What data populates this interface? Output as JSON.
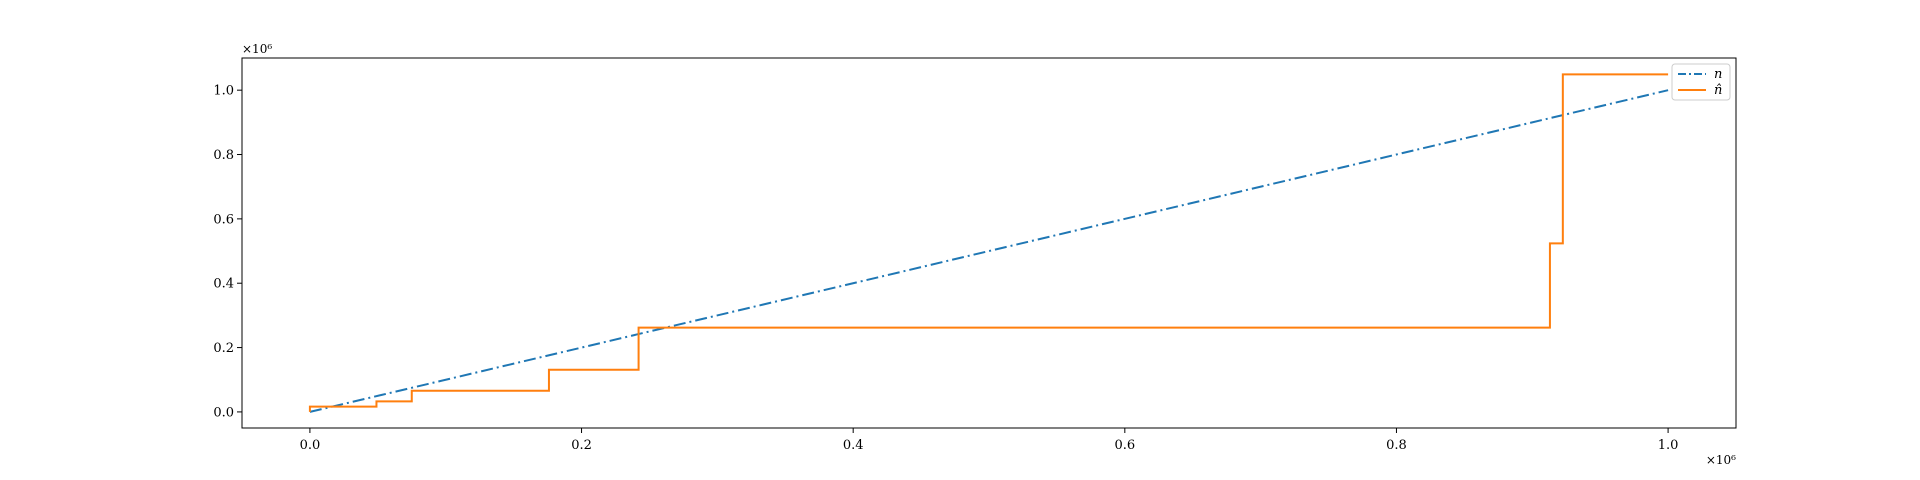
{
  "chart_data": {
    "type": "line",
    "title": "",
    "xlabel": "",
    "ylabel": "",
    "x_multiplier": "×10⁶",
    "y_multiplier": "×10⁶",
    "xlim": [
      -0.05,
      1.05
    ],
    "ylim": [
      -0.05,
      1.1
    ],
    "xticks": [
      0.0,
      0.2,
      0.4,
      0.6,
      0.8,
      1.0
    ],
    "xtick_labels": [
      "0.0",
      "0.2",
      "0.4",
      "0.6",
      "0.8",
      "1.0"
    ],
    "yticks": [
      0.0,
      0.2,
      0.4,
      0.6,
      0.8,
      1.0
    ],
    "ytick_labels": [
      "0.0",
      "0.2",
      "0.4",
      "0.6",
      "0.8",
      "1.0"
    ],
    "grid": false,
    "legend": {
      "placement": "top-right"
    },
    "series": [
      {
        "name": "n",
        "color": "#1f77b4",
        "line_style": "dashdot",
        "x": [
          0.0,
          1.0
        ],
        "y": [
          0.0,
          1.0
        ]
      },
      {
        "name": "n̂",
        "color": "#ff7f0e",
        "line_style": "solid",
        "step": true,
        "x": [
          0.0,
          0.0,
          0.049,
          0.049,
          0.075,
          0.075,
          0.176,
          0.176,
          0.242,
          0.242,
          0.913,
          0.913,
          0.9225,
          0.9225,
          1.0
        ],
        "y": [
          0.0,
          0.0164,
          0.0164,
          0.0328,
          0.0328,
          0.0656,
          0.0656,
          0.131,
          0.131,
          0.262,
          0.262,
          0.524,
          0.524,
          1.049,
          1.049
        ]
      }
    ]
  }
}
